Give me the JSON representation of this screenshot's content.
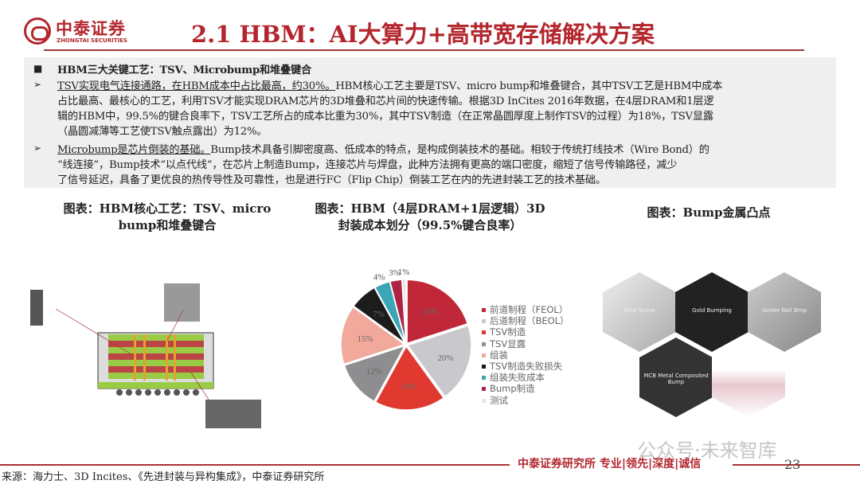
{
  "header": {
    "logo_cn": "中泰证券",
    "logo_en": "ZHONGTAI SECURITIES",
    "title": "2.1 HBM：AI大算力+高带宽存储解决方案"
  },
  "summary": {
    "heading": "HBM三大关键工艺：TSV、Microbump和堆叠键合",
    "bullet1_lead": "TSV实现电气连接通路，在HBM成本中占比最高，约30%。",
    "bullet1_lines": [
      "HBM核心工艺主要是TSV、micro bump和堆叠键合，其中TSV工艺是HBM中成本",
      "占比最高、最核心的工艺，利用TSV才能实现DRAM芯片的3D堆叠和芯片间的快速传输。根据3D InCites 2016年数据，在4层DRAM和1层逻",
      "辑的HBM中，99.5%的键合良率下，TSV工艺所占的成本比重为30%，其中TSV制造（在正常晶圆厚度上制作TSV的过程）为18%，TSV显露",
      "（晶圆减薄等工艺使TSV触点露出）为12%。"
    ],
    "bullet2_lead": "Microbump是芯片倒装的基础。",
    "bullet2_lines": [
      "Bump技术具备引脚密度高、低成本的特点，是构成倒装技术的基础。相较于传统打线技术（Wire Bond）的",
      "“线连接”，Bump技术“以点代线”，在芯片上制造Bump，连接芯片与焊盘，此种方法拥有更高的端口密度，缩短了信号传输路径，减少",
      "了信号延迟，具备了更优良的热传导性及可靠性，也是进行FC（Flip Chip）倒装工艺在内的先进封装工艺的技术基础。"
    ]
  },
  "figures": {
    "left_title": [
      "图表：HBM核心工艺：TSV、micro",
      "bump和堆叠键合"
    ],
    "middle_title": [
      "图表：HBM（4层DRAM+1层逻辑）3D",
      "封装成本划分（99.5%键合良率）"
    ],
    "right_title": "图表：Bump金属凸点",
    "hex_labels": [
      "Pillar Bump",
      "Gold Bumping",
      "Solder Ball Bmp",
      "MCB Metal Composited Bump"
    ]
  },
  "chart_data": {
    "type": "pie",
    "categories": [
      "前道制程（FEOL）",
      "后道制程（BEOL）",
      "TSV制造",
      "TSV显露",
      "组装",
      "TSV制造失败损失",
      "组装失败成本",
      "Bump制造",
      "测试"
    ],
    "values": [
      20,
      20,
      18,
      12,
      15,
      7,
      4,
      3,
      1
    ],
    "labels": [
      "20%",
      "20%",
      "18%",
      "12%",
      "15%",
      "7%",
      "4%",
      "3%",
      "1%"
    ],
    "colors": [
      "#c0283a",
      "#c9c9cd",
      "#e0392f",
      "#8e8e90",
      "#f2a89a",
      "#1c1c1c",
      "#3aa6b6",
      "#b02244",
      "#ece4e4"
    ],
    "legend": "right"
  },
  "footer": {
    "org": "中泰证券研究所 专业|领先|深度|诚信",
    "page": "23",
    "source": "来源：海力士、3D Incites、《先进封装与异构集成》，中泰证券研究所",
    "watermark": "公众号·未来智库"
  }
}
